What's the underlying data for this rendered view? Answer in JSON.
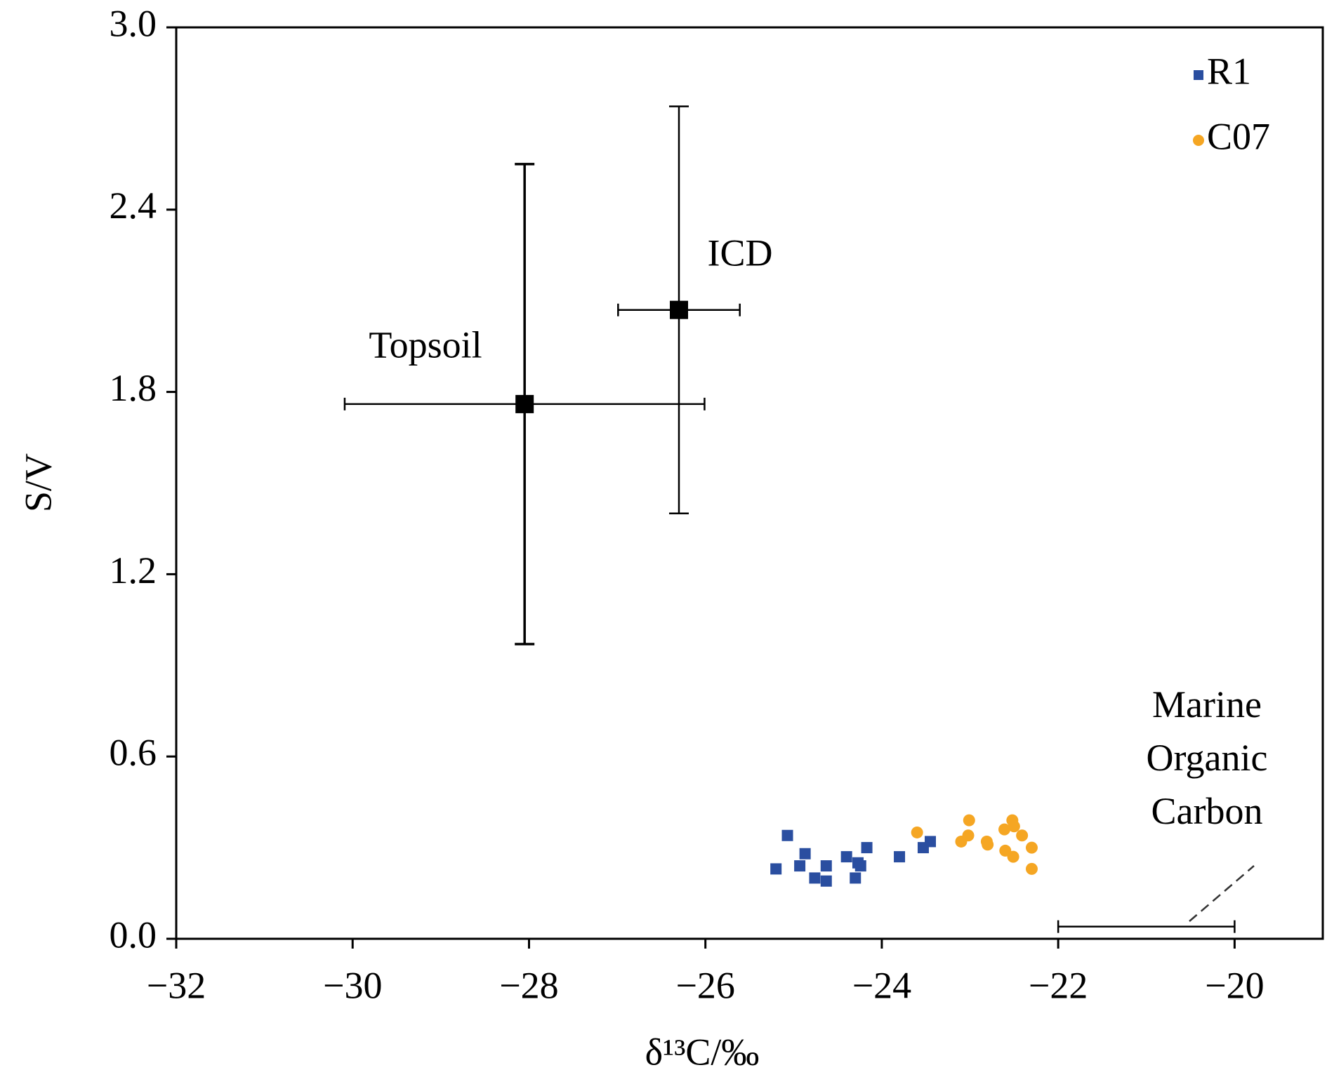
{
  "chart_data": {
    "type": "scatter",
    "xlabel": "δ¹³C/‰",
    "ylabel": "S/V",
    "xlim": [
      -32,
      -19
    ],
    "xticks": [
      {
        "value": -32,
        "label": "−32"
      },
      {
        "value": -30,
        "label": "−30"
      },
      {
        "value": -28,
        "label": "−28"
      },
      {
        "value": -26,
        "label": "−26"
      },
      {
        "value": -24,
        "label": "−24"
      },
      {
        "value": -22,
        "label": "−22"
      },
      {
        "value": -20,
        "label": "−20"
      }
    ],
    "ylim": [
      0,
      3
    ],
    "yticks": [
      {
        "value": 0,
        "label": "0.0"
      },
      0.6,
      1.2,
      1.8,
      2.4,
      {
        "value": 3,
        "label": "3.0"
      }
    ],
    "legend": "upper right",
    "series": [
      {
        "name": "R1",
        "color": "#2a4ea0",
        "marker": "square",
        "x": [
          -25.2,
          -25.07,
          -24.93,
          -24.87,
          -24.76,
          -24.63,
          -24.63,
          -24.4,
          -24.3,
          -24.27,
          -24.24,
          -24.17,
          -23.8,
          -23.53,
          -23.45
        ],
        "values": [
          0.23,
          0.34,
          0.24,
          0.28,
          0.2,
          0.24,
          0.19,
          0.27,
          0.2,
          0.25,
          0.24,
          0.3,
          0.27,
          0.3,
          0.32
        ]
      },
      {
        "name": "C07",
        "color": "#f5a623",
        "marker": "circle",
        "x": [
          -23.6,
          -23.1,
          -23.02,
          -23.01,
          -22.81,
          -22.8,
          -22.61,
          -22.6,
          -22.52,
          -22.5,
          -22.51,
          -22.41,
          -22.3,
          -22.3
        ],
        "values": [
          0.35,
          0.32,
          0.34,
          0.39,
          0.32,
          0.31,
          0.36,
          0.29,
          0.39,
          0.37,
          0.27,
          0.34,
          0.3,
          0.23
        ]
      }
    ],
    "error_points": [
      {
        "label": "Topsoil",
        "x": -28.05,
        "y": 1.76,
        "xerr": 2.04,
        "yerr": 0.79
      },
      {
        "label": "ICD",
        "x": -26.3,
        "y": 2.07,
        "xerr": 0.69,
        "yerr": 0.67
      },
      {
        "label": "Marine Organic Carbon",
        "x": -21,
        "y": 0.04,
        "xerr": 1
      }
    ]
  }
}
